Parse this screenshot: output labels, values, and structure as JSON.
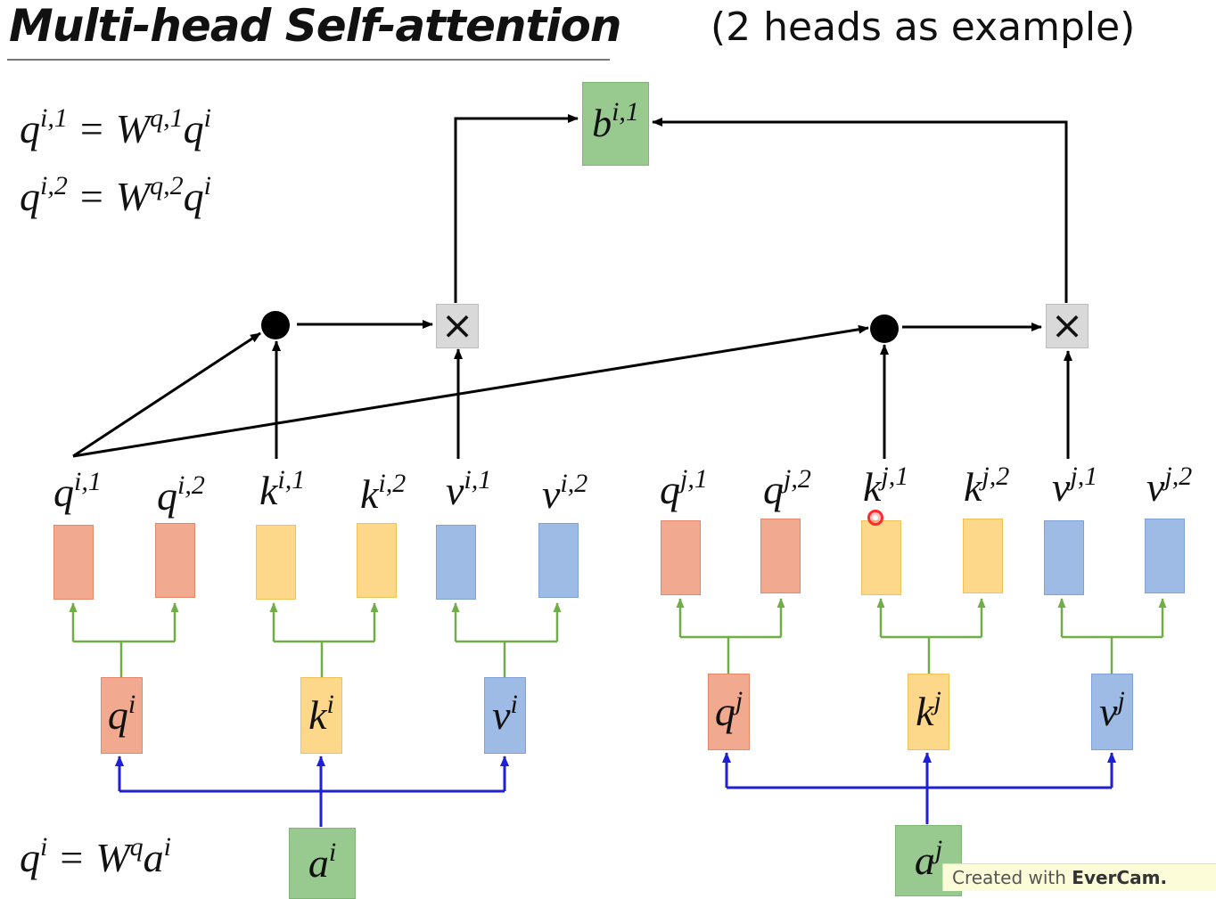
{
  "header": {
    "title": "Multi-head Self-attention",
    "subtitle": "(2 heads as example)"
  },
  "equations": [
    {
      "lhs": "q",
      "lhs_sup": "i,1",
      "op": "=",
      "w": "W",
      "w_sup": "q,1",
      "r": "q",
      "r_sup": "i"
    },
    {
      "lhs": "q",
      "lhs_sup": "i,2",
      "op": "=",
      "w": "W",
      "w_sup": "q,2",
      "r": "q",
      "r_sup": "i"
    },
    {
      "lhs": "q",
      "lhs_sup": "i",
      "op": "=",
      "w": "W",
      "w_sup": "q",
      "r": "a",
      "r_sup": "i"
    }
  ],
  "output": {
    "base": "b",
    "sup": "i,1"
  },
  "operator_symbol": "×",
  "head_labels": [
    {
      "base": "q",
      "sup": "i,1"
    },
    {
      "base": "q",
      "sup": "i,2"
    },
    {
      "base": "k",
      "sup": "i,1"
    },
    {
      "base": "k",
      "sup": "i,2"
    },
    {
      "base": "v",
      "sup": "i,1"
    },
    {
      "base": "v",
      "sup": "i,2"
    },
    {
      "base": "q",
      "sup": "j,1"
    },
    {
      "base": "q",
      "sup": "j,2"
    },
    {
      "base": "k",
      "sup": "j,1"
    },
    {
      "base": "k",
      "sup": "j,2"
    },
    {
      "base": "v",
      "sup": "j,1"
    },
    {
      "base": "v",
      "sup": "j,2"
    }
  ],
  "vectors": [
    {
      "base": "q",
      "sup": "i"
    },
    {
      "base": "k",
      "sup": "i"
    },
    {
      "base": "v",
      "sup": "i"
    },
    {
      "base": "q",
      "sup": "j"
    },
    {
      "base": "k",
      "sup": "j"
    },
    {
      "base": "v",
      "sup": "j"
    }
  ],
  "inputs": [
    {
      "base": "a",
      "sup": "i"
    },
    {
      "base": "a",
      "sup": "j"
    }
  ],
  "watermark": {
    "prefix": "Created with ",
    "brand": "EverCam."
  },
  "colors": {
    "query": "#f1aa8f",
    "key": "#fdd88a",
    "value": "#9dbbe4",
    "input": "#98c98f",
    "split_wire": "#70ad47",
    "input_wire": "#1f1fd6",
    "attention_wire": "#000000"
  }
}
